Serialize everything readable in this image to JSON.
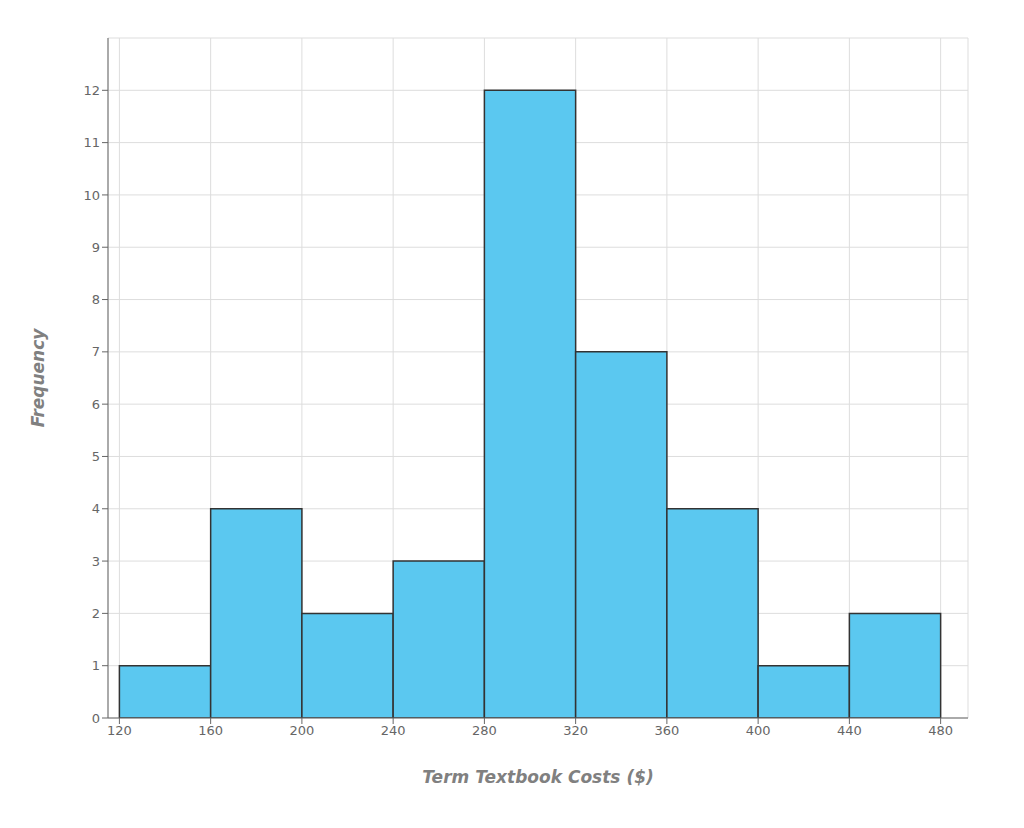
{
  "chart_data": {
    "type": "histogram",
    "bins": [
      120,
      160,
      200,
      240,
      280,
      320,
      360,
      400,
      440,
      480
    ],
    "values": [
      1,
      4,
      2,
      3,
      12,
      7,
      4,
      1,
      2
    ],
    "color": "#5BC8F0",
    "xlabel": "Term Textbook Costs ($)",
    "ylabel": "Frequency",
    "xlim": [
      115,
      492
    ],
    "ylim": [
      0,
      13.0
    ],
    "xticks": [
      120,
      160,
      200,
      240,
      280,
      320,
      360,
      400,
      440,
      480
    ],
    "yticks": [
      0,
      1,
      2,
      3,
      4,
      5,
      6,
      7,
      8,
      9,
      10,
      11,
      12
    ],
    "grid": true
  }
}
